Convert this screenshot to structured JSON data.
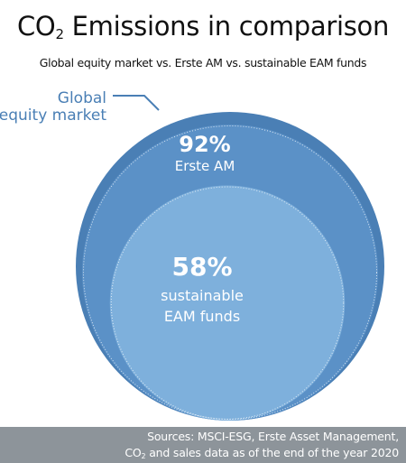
{
  "header": {
    "title_prefix": "CO",
    "title_sub": "2",
    "title_rest": " Emissions in comparison",
    "subtitle": "Global equity market vs. Erste AM vs. sustainable EAM funds"
  },
  "chart_data": {
    "type": "nested-circles",
    "unit": "%",
    "series": [
      {
        "name": "Global equity market",
        "label_lines": [
          "Global",
          "equity market"
        ],
        "value": 100,
        "color": "#4a7fb5"
      },
      {
        "name": "Erste AM",
        "label_lines": [
          "92%",
          "Erste AM"
        ],
        "value": 92,
        "color": "#5b91c7"
      },
      {
        "name": "sustainable EAM funds",
        "label_lines": [
          "58%",
          "sustainable",
          "EAM funds"
        ],
        "value": 58,
        "color": "#7eb0dc"
      }
    ]
  },
  "footer": {
    "line1": "Sources: MSCI-ESG, Erste Asset Management,",
    "line2_prefix": "CO",
    "line2_sub": "2",
    "line2_rest": " and sales data as of the end of the year 2020"
  }
}
